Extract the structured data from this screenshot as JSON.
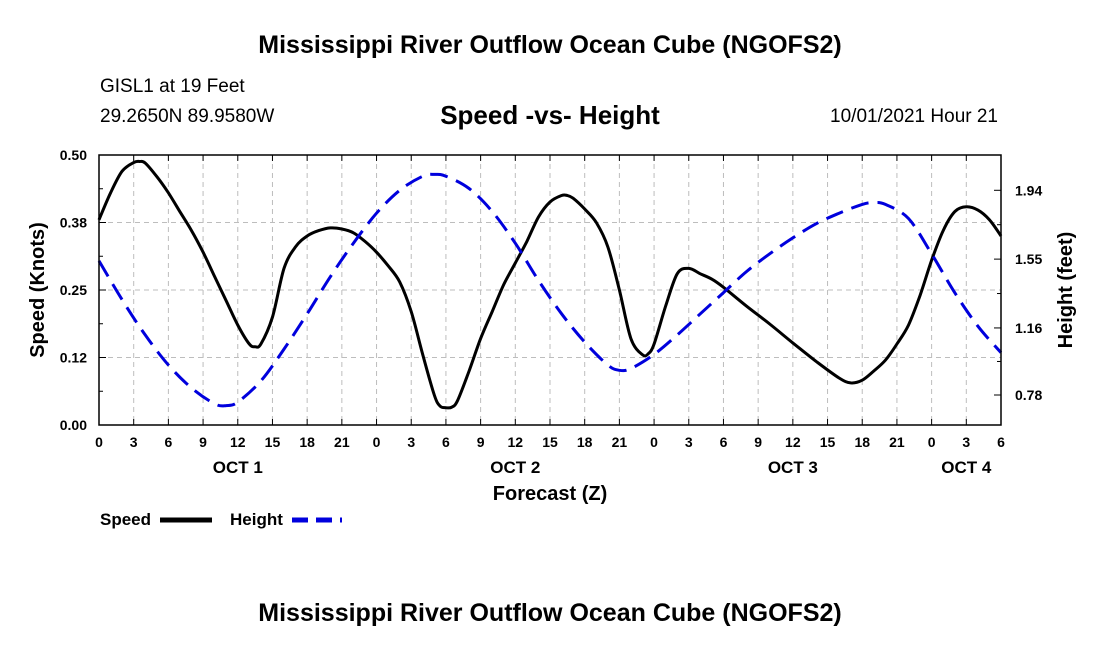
{
  "header": {
    "title": "Mississippi River Outflow Ocean Cube (NGOFS2)",
    "station": "GISL1 at 19 Feet",
    "coordinates": "29.2650N  89.9580W",
    "chart_title": "Speed -vs- Height",
    "datetime": "10/01/2021 Hour 21"
  },
  "footer": {
    "title": "Mississippi River Outflow Ocean Cube (NGOFS2)"
  },
  "legend": {
    "speed_label": "Speed",
    "height_label": "Height"
  },
  "chart_data": {
    "type": "line",
    "title": "Speed -vs- Height",
    "xlabel": "Forecast (Z)",
    "ylabel": "Speed (Knots)",
    "y2label": "Height (feet)",
    "xlim": [
      0,
      78
    ],
    "ylim": [
      0,
      0.5
    ],
    "y2lim": [
      0.61,
      2.14
    ],
    "grid": true,
    "legend_position": "bottom-left",
    "x_ticks": [
      {
        "x": 0,
        "label": "0"
      },
      {
        "x": 3,
        "label": "3"
      },
      {
        "x": 6,
        "label": "6"
      },
      {
        "x": 9,
        "label": "9"
      },
      {
        "x": 12,
        "label": "12"
      },
      {
        "x": 15,
        "label": "15"
      },
      {
        "x": 18,
        "label": "18"
      },
      {
        "x": 21,
        "label": "21"
      },
      {
        "x": 24,
        "label": "0"
      },
      {
        "x": 27,
        "label": "3"
      },
      {
        "x": 30,
        "label": "6"
      },
      {
        "x": 33,
        "label": "9"
      },
      {
        "x": 36,
        "label": "12"
      },
      {
        "x": 39,
        "label": "15"
      },
      {
        "x": 42,
        "label": "18"
      },
      {
        "x": 45,
        "label": "21"
      },
      {
        "x": 48,
        "label": "0"
      },
      {
        "x": 51,
        "label": "3"
      },
      {
        "x": 54,
        "label": "6"
      },
      {
        "x": 57,
        "label": "9"
      },
      {
        "x": 60,
        "label": "12"
      },
      {
        "x": 63,
        "label": "15"
      },
      {
        "x": 66,
        "label": "18"
      },
      {
        "x": 69,
        "label": "21"
      },
      {
        "x": 72,
        "label": "0"
      },
      {
        "x": 75,
        "label": "3"
      },
      {
        "x": 78,
        "label": "6"
      }
    ],
    "day_labels": [
      {
        "x": 12,
        "label": "OCT 1"
      },
      {
        "x": 36,
        "label": "OCT 2"
      },
      {
        "x": 60,
        "label": "OCT 3"
      },
      {
        "x": 75,
        "label": "OCT 4"
      }
    ],
    "y_ticks": [
      {
        "value": 0.0,
        "label": "0.00"
      },
      {
        "value": 0.125,
        "label": "0.12"
      },
      {
        "value": 0.25,
        "label": "0.25"
      },
      {
        "value": 0.375,
        "label": "0.38"
      },
      {
        "value": 0.5,
        "label": "0.50"
      }
    ],
    "y2_ticks": [
      {
        "value": 0.78,
        "label": "0.78"
      },
      {
        "value": 1.16,
        "label": "1.16"
      },
      {
        "value": 1.55,
        "label": "1.55"
      },
      {
        "value": 1.94,
        "label": "1.94"
      }
    ],
    "series": [
      {
        "name": "Speed",
        "axis": "left",
        "color": "#000000",
        "style": "solid",
        "x": [
          0,
          1,
          2,
          3,
          3.5,
          4,
          5,
          6,
          7,
          8,
          9,
          10,
          11,
          12,
          13,
          13.5,
          14,
          15,
          16,
          17,
          18,
          19,
          20,
          21,
          22,
          23,
          24,
          25,
          26,
          27,
          28,
          29,
          29.5,
          30,
          30.5,
          31,
          32,
          33,
          34,
          35,
          36,
          37,
          38,
          39,
          40,
          40.5,
          41,
          42,
          43,
          44,
          45,
          46,
          47,
          47.5,
          48,
          49,
          50,
          51,
          52,
          53,
          54,
          56,
          58,
          60,
          62,
          64,
          65,
          66,
          67,
          68,
          69,
          70,
          71,
          72,
          73,
          74,
          75,
          76,
          77,
          78
        ],
        "y": [
          0.38,
          0.43,
          0.47,
          0.486,
          0.488,
          0.485,
          0.46,
          0.43,
          0.395,
          0.36,
          0.32,
          0.275,
          0.23,
          0.185,
          0.15,
          0.145,
          0.15,
          0.2,
          0.29,
          0.33,
          0.35,
          0.36,
          0.365,
          0.363,
          0.356,
          0.34,
          0.32,
          0.295,
          0.265,
          0.21,
          0.13,
          0.055,
          0.035,
          0.032,
          0.033,
          0.045,
          0.1,
          0.16,
          0.21,
          0.26,
          0.3,
          0.34,
          0.385,
          0.413,
          0.425,
          0.425,
          0.42,
          0.4,
          0.375,
          0.33,
          0.25,
          0.16,
          0.13,
          0.132,
          0.15,
          0.22,
          0.28,
          0.29,
          0.28,
          0.27,
          0.255,
          0.22,
          0.187,
          0.152,
          0.118,
          0.087,
          0.078,
          0.083,
          0.1,
          0.12,
          0.15,
          0.185,
          0.24,
          0.305,
          0.36,
          0.395,
          0.404,
          0.398,
          0.38,
          0.35
        ]
      },
      {
        "name": "Height",
        "axis": "right",
        "color": "#0000dd",
        "style": "dashed",
        "x": [
          0,
          2,
          4,
          6,
          8,
          10,
          11,
          12,
          14,
          16,
          18,
          20,
          22,
          24,
          26,
          28,
          29,
          30,
          32,
          34,
          36,
          38,
          40,
          42,
          44,
          45,
          46,
          48,
          50,
          52,
          54,
          56,
          58,
          60,
          62,
          64,
          66,
          67,
          68,
          70,
          72,
          74,
          76,
          78
        ],
        "y": [
          1.54,
          1.32,
          1.12,
          0.95,
          0.82,
          0.73,
          0.72,
          0.74,
          0.86,
          1.04,
          1.24,
          1.45,
          1.64,
          1.81,
          1.94,
          2.02,
          2.03,
          2.02,
          1.95,
          1.82,
          1.64,
          1.43,
          1.24,
          1.08,
          0.95,
          0.92,
          0.93,
          1.01,
          1.12,
          1.24,
          1.36,
          1.48,
          1.58,
          1.67,
          1.75,
          1.81,
          1.86,
          1.87,
          1.86,
          1.78,
          1.58,
          1.36,
          1.17,
          1.02
        ]
      }
    ]
  }
}
